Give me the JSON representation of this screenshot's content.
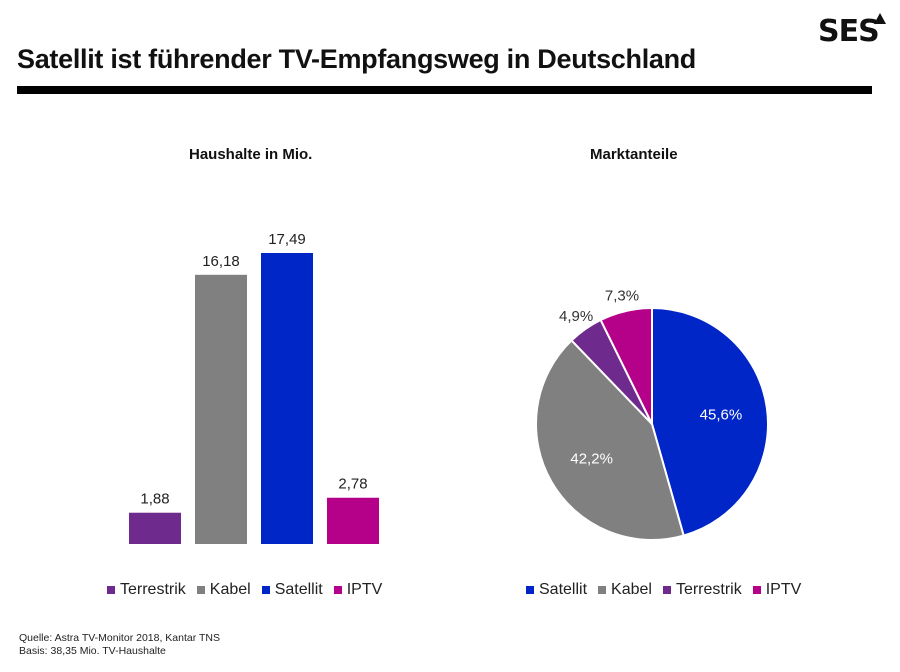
{
  "header": {
    "logo_text": "SES",
    "title": "Satellit ist führender TV-Empfangsweg in Deutschland"
  },
  "colors": {
    "Terrestrik": "#6e2a8c",
    "Kabel": "#808080",
    "Satellit": "#0026c8",
    "IPTV": "#b5008a"
  },
  "chart_data": [
    {
      "type": "bar",
      "title": "Haushalte in Mio.",
      "categories": [
        "Terrestrik",
        "Kabel",
        "Satellit",
        "IPTV"
      ],
      "values": [
        1.88,
        16.18,
        17.49,
        2.78
      ],
      "value_labels": [
        "1,88",
        "16,18",
        "17,49",
        "2,78"
      ],
      "xlabel": "",
      "ylabel": "",
      "ylim": [
        0,
        17.49
      ],
      "grid": false,
      "legend": {
        "position": "bottom",
        "entries": [
          "Terrestrik",
          "Kabel",
          "Satellit",
          "IPTV"
        ]
      }
    },
    {
      "type": "pie",
      "title": "Marktanteile",
      "categories": [
        "Satellit",
        "Kabel",
        "Terrestrik",
        "IPTV"
      ],
      "values": [
        45.6,
        42.2,
        4.9,
        7.3
      ],
      "value_labels": [
        "45,6%",
        "42,2%",
        "4,9%",
        "7,3%"
      ],
      "legend": {
        "position": "bottom",
        "entries": [
          "Satellit",
          "Kabel",
          "Terrestrik",
          "IPTV"
        ]
      }
    }
  ],
  "footer": {
    "source": "Quelle: Astra TV-Monitor 2018, Kantar TNS",
    "basis": "Basis: 38,35 Mio. TV-Haushalte"
  }
}
